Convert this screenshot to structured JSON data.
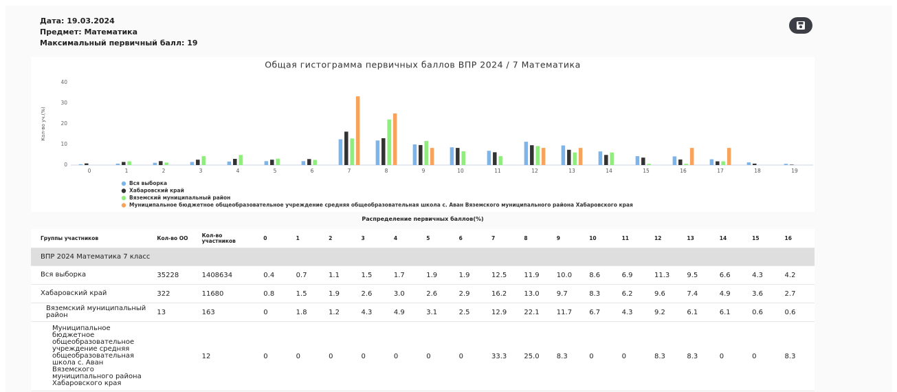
{
  "header": {
    "date": "Дата: 19.03.2024",
    "subject": "Предмет: Математика",
    "max_score": "Максимальный первичный балл: 19"
  },
  "chart_data": {
    "type": "bar",
    "title": "Общая гистограмма первичных баллов ВПР 2024 / 7 Математика",
    "y_label": "Кол-во уч.(%)",
    "categories": [
      "0",
      "1",
      "2",
      "3",
      "4",
      "5",
      "6",
      "7",
      "8",
      "9",
      "10",
      "11",
      "12",
      "13",
      "14",
      "15",
      "16",
      "17",
      "18",
      "19"
    ],
    "ylim": [
      0,
      40
    ],
    "yticks": [
      0,
      10,
      20,
      30,
      40
    ],
    "legend": "bottom-left",
    "series": [
      {
        "name": "Вся выборка",
        "color": "#7cb5ec",
        "values": [
          0.4,
          0.7,
          1.1,
          1.5,
          1.7,
          1.9,
          1.9,
          12.5,
          11.9,
          10.0,
          8.6,
          6.9,
          11.3,
          9.5,
          6.6,
          4.3,
          4.2,
          2.8,
          1.3,
          0.6
        ]
      },
      {
        "name": "Хабаровский край",
        "color": "#333333",
        "values": [
          0.8,
          1.5,
          1.9,
          2.6,
          3.0,
          2.6,
          2.9,
          16.2,
          13.0,
          9.7,
          8.3,
          6.2,
          9.6,
          7.4,
          4.9,
          3.6,
          2.7,
          1.8,
          0.7,
          0.2
        ]
      },
      {
        "name": "Вяземский муниципальный район",
        "color": "#90ed7d",
        "values": [
          0,
          1.8,
          1.2,
          4.3,
          4.9,
          3.1,
          2.5,
          12.9,
          22.1,
          11.7,
          6.7,
          4.3,
          9.2,
          6.1,
          6.1,
          0.6,
          0.6,
          1.8,
          0,
          0
        ]
      },
      {
        "name": "Муниципальное бюджетное общеобразовательное учреждение средняя общеобразовательная школа с. Аван Вяземского муниципального района Хабаровского края",
        "color": "#f7a35c",
        "values": [
          0,
          0,
          0,
          0,
          0,
          0,
          0,
          33.3,
          25.0,
          8.3,
          0,
          0,
          8.3,
          8.3,
          0,
          0,
          8.3,
          8.3,
          0,
          0
        ]
      }
    ]
  },
  "table": {
    "caption": "Распределение первичных баллов(%)",
    "columns": [
      "Группы участников",
      "Кол-во ОО",
      "Кол-во участников",
      "0",
      "1",
      "2",
      "3",
      "4",
      "5",
      "6",
      "7",
      "8",
      "9",
      "10",
      "11",
      "12",
      "13",
      "14",
      "15",
      "16"
    ],
    "group": "ВПР 2024 Математика 7 класс",
    "rows": [
      {
        "name": "Вся выборка",
        "oo": "35228",
        "participants": "1408634",
        "values": [
          "0.4",
          "0.7",
          "1.1",
          "1.5",
          "1.7",
          "1.9",
          "1.9",
          "12.5",
          "11.9",
          "10.0",
          "8.6",
          "6.9",
          "11.3",
          "9.5",
          "6.6",
          "4.3",
          "4.2"
        ]
      },
      {
        "name": "Хабаровский край",
        "oo": "322",
        "participants": "11680",
        "values": [
          "0.8",
          "1.5",
          "1.9",
          "2.6",
          "3.0",
          "2.6",
          "2.9",
          "16.2",
          "13.0",
          "9.7",
          "8.3",
          "6.2",
          "9.6",
          "7.4",
          "4.9",
          "3.6",
          "2.7"
        ]
      },
      {
        "name": "Вяземский муниципальный район",
        "oo": "13",
        "participants": "163",
        "values": [
          "0",
          "1.8",
          "1.2",
          "4.3",
          "4.9",
          "3.1",
          "2.5",
          "12.9",
          "22.1",
          "11.7",
          "6.7",
          "4.3",
          "9.2",
          "6.1",
          "6.1",
          "0.6",
          "0.6"
        ]
      },
      {
        "name": "Муниципальное бюджетное общеобразовательное учреждение средняя общеобразовательная школа с. Аван Вяземского муниципального района Хабаровского края",
        "participants": "12",
        "values": [
          "0",
          "0",
          "0",
          "0",
          "0",
          "0",
          "0",
          "33.3",
          "25.0",
          "8.3",
          "0",
          "0",
          "8.3",
          "8.3",
          "0",
          "0",
          "8.3"
        ]
      }
    ]
  }
}
